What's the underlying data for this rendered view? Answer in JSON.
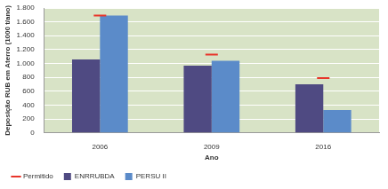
{
  "chart_data": {
    "type": "bar",
    "x_label": "Ano",
    "y_label": "Deposição RUB em Aterro (1000 t/ano)",
    "categories": [
      "2006",
      "2009",
      "2016"
    ],
    "series": [
      {
        "name": "ENRRUBDA",
        "type": "bar",
        "color": "#4f4a82",
        "values": [
          1060,
          970,
          700
        ]
      },
      {
        "name": "PERSU II",
        "type": "bar",
        "color": "#5b8bc9",
        "values": [
          1690,
          1040,
          330
        ]
      },
      {
        "name": "Permitido",
        "type": "line",
        "color": "#e8352a",
        "marker": "line",
        "line_style": "none",
        "values": [
          1690,
          1130,
          790
        ]
      }
    ],
    "ylim": [
      0,
      1800
    ],
    "yticks": [
      0,
      200,
      400,
      600,
      800,
      {
        "value": 1000,
        "label": "1.000"
      },
      {
        "value": 1200,
        "label": "1.200"
      },
      {
        "value": 1400,
        "label": "1.400"
      },
      {
        "value": 1600,
        "label": "1.600"
      },
      {
        "value": 1800,
        "label": "1.800"
      }
    ],
    "grid": true,
    "legend": "bottom"
  }
}
